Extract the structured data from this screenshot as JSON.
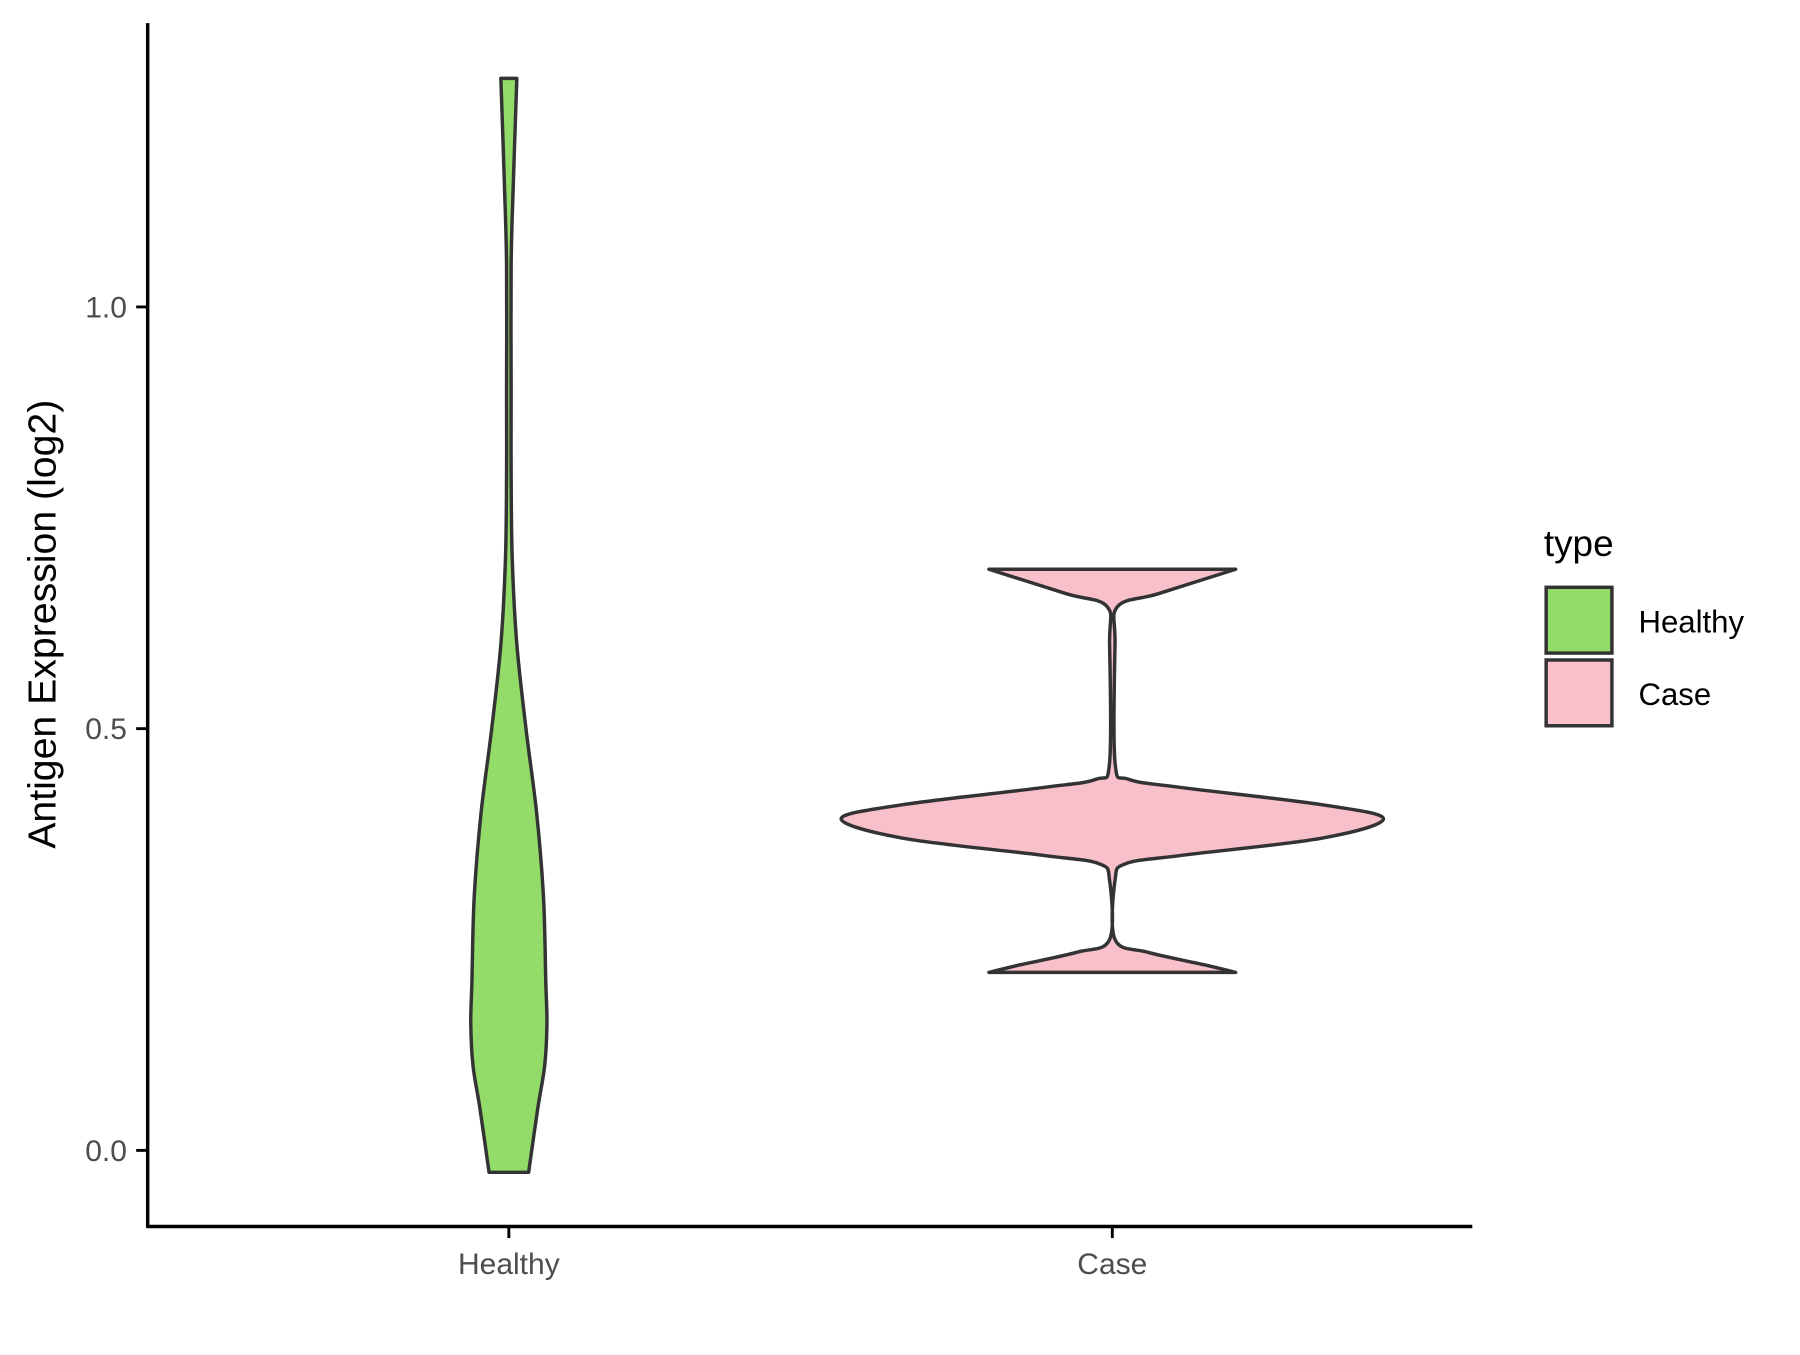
{
  "chart_data": {
    "type": "violin",
    "title": "",
    "xlabel": "",
    "ylabel": "Antigen Expression (log2)",
    "ylim": [
      -0.09,
      1.337
    ],
    "yticks": [
      0.0,
      0.5,
      1.0
    ],
    "ytick_labels": [
      "0.0",
      "0.5",
      "1.0"
    ],
    "categories": [
      "Healthy",
      "Case"
    ],
    "grid": false,
    "legend": {
      "title": "type",
      "placement": "right",
      "entries": [
        "Healthy",
        "Case"
      ]
    },
    "series": [
      {
        "name": "Healthy",
        "color": "#93DC6A",
        "range": [
          -0.026,
          1.271
        ],
        "density_profile": [
          [
            -0.026,
            0.52
          ],
          [
            0.05,
            0.76
          ],
          [
            0.1,
            0.94
          ],
          [
            0.15,
            1.0
          ],
          [
            0.2,
            0.97
          ],
          [
            0.3,
            0.91
          ],
          [
            0.4,
            0.73
          ],
          [
            0.5,
            0.45
          ],
          [
            0.6,
            0.21
          ],
          [
            0.7,
            0.09
          ],
          [
            0.8,
            0.06
          ],
          [
            0.9,
            0.06
          ],
          [
            1.05,
            0.06
          ],
          [
            1.15,
            0.12
          ],
          [
            1.271,
            0.21
          ]
        ]
      },
      {
        "name": "Case",
        "color": "#F8C0CB",
        "range": [
          0.211,
          0.689
        ],
        "density_profile": [
          [
            0.211,
            0.455
          ],
          [
            0.22,
            0.34
          ],
          [
            0.235,
            0.13
          ],
          [
            0.25,
            0.01
          ],
          [
            0.32,
            0.01
          ],
          [
            0.34,
            0.05
          ],
          [
            0.35,
            0.26
          ],
          [
            0.37,
            0.77
          ],
          [
            0.393,
            1.0
          ],
          [
            0.41,
            0.77
          ],
          [
            0.43,
            0.26
          ],
          [
            0.44,
            0.06
          ],
          [
            0.46,
            0.01
          ],
          [
            0.6,
            0.01
          ],
          [
            0.645,
            0.02
          ],
          [
            0.66,
            0.17
          ],
          [
            0.689,
            0.455
          ]
        ]
      }
    ]
  }
}
